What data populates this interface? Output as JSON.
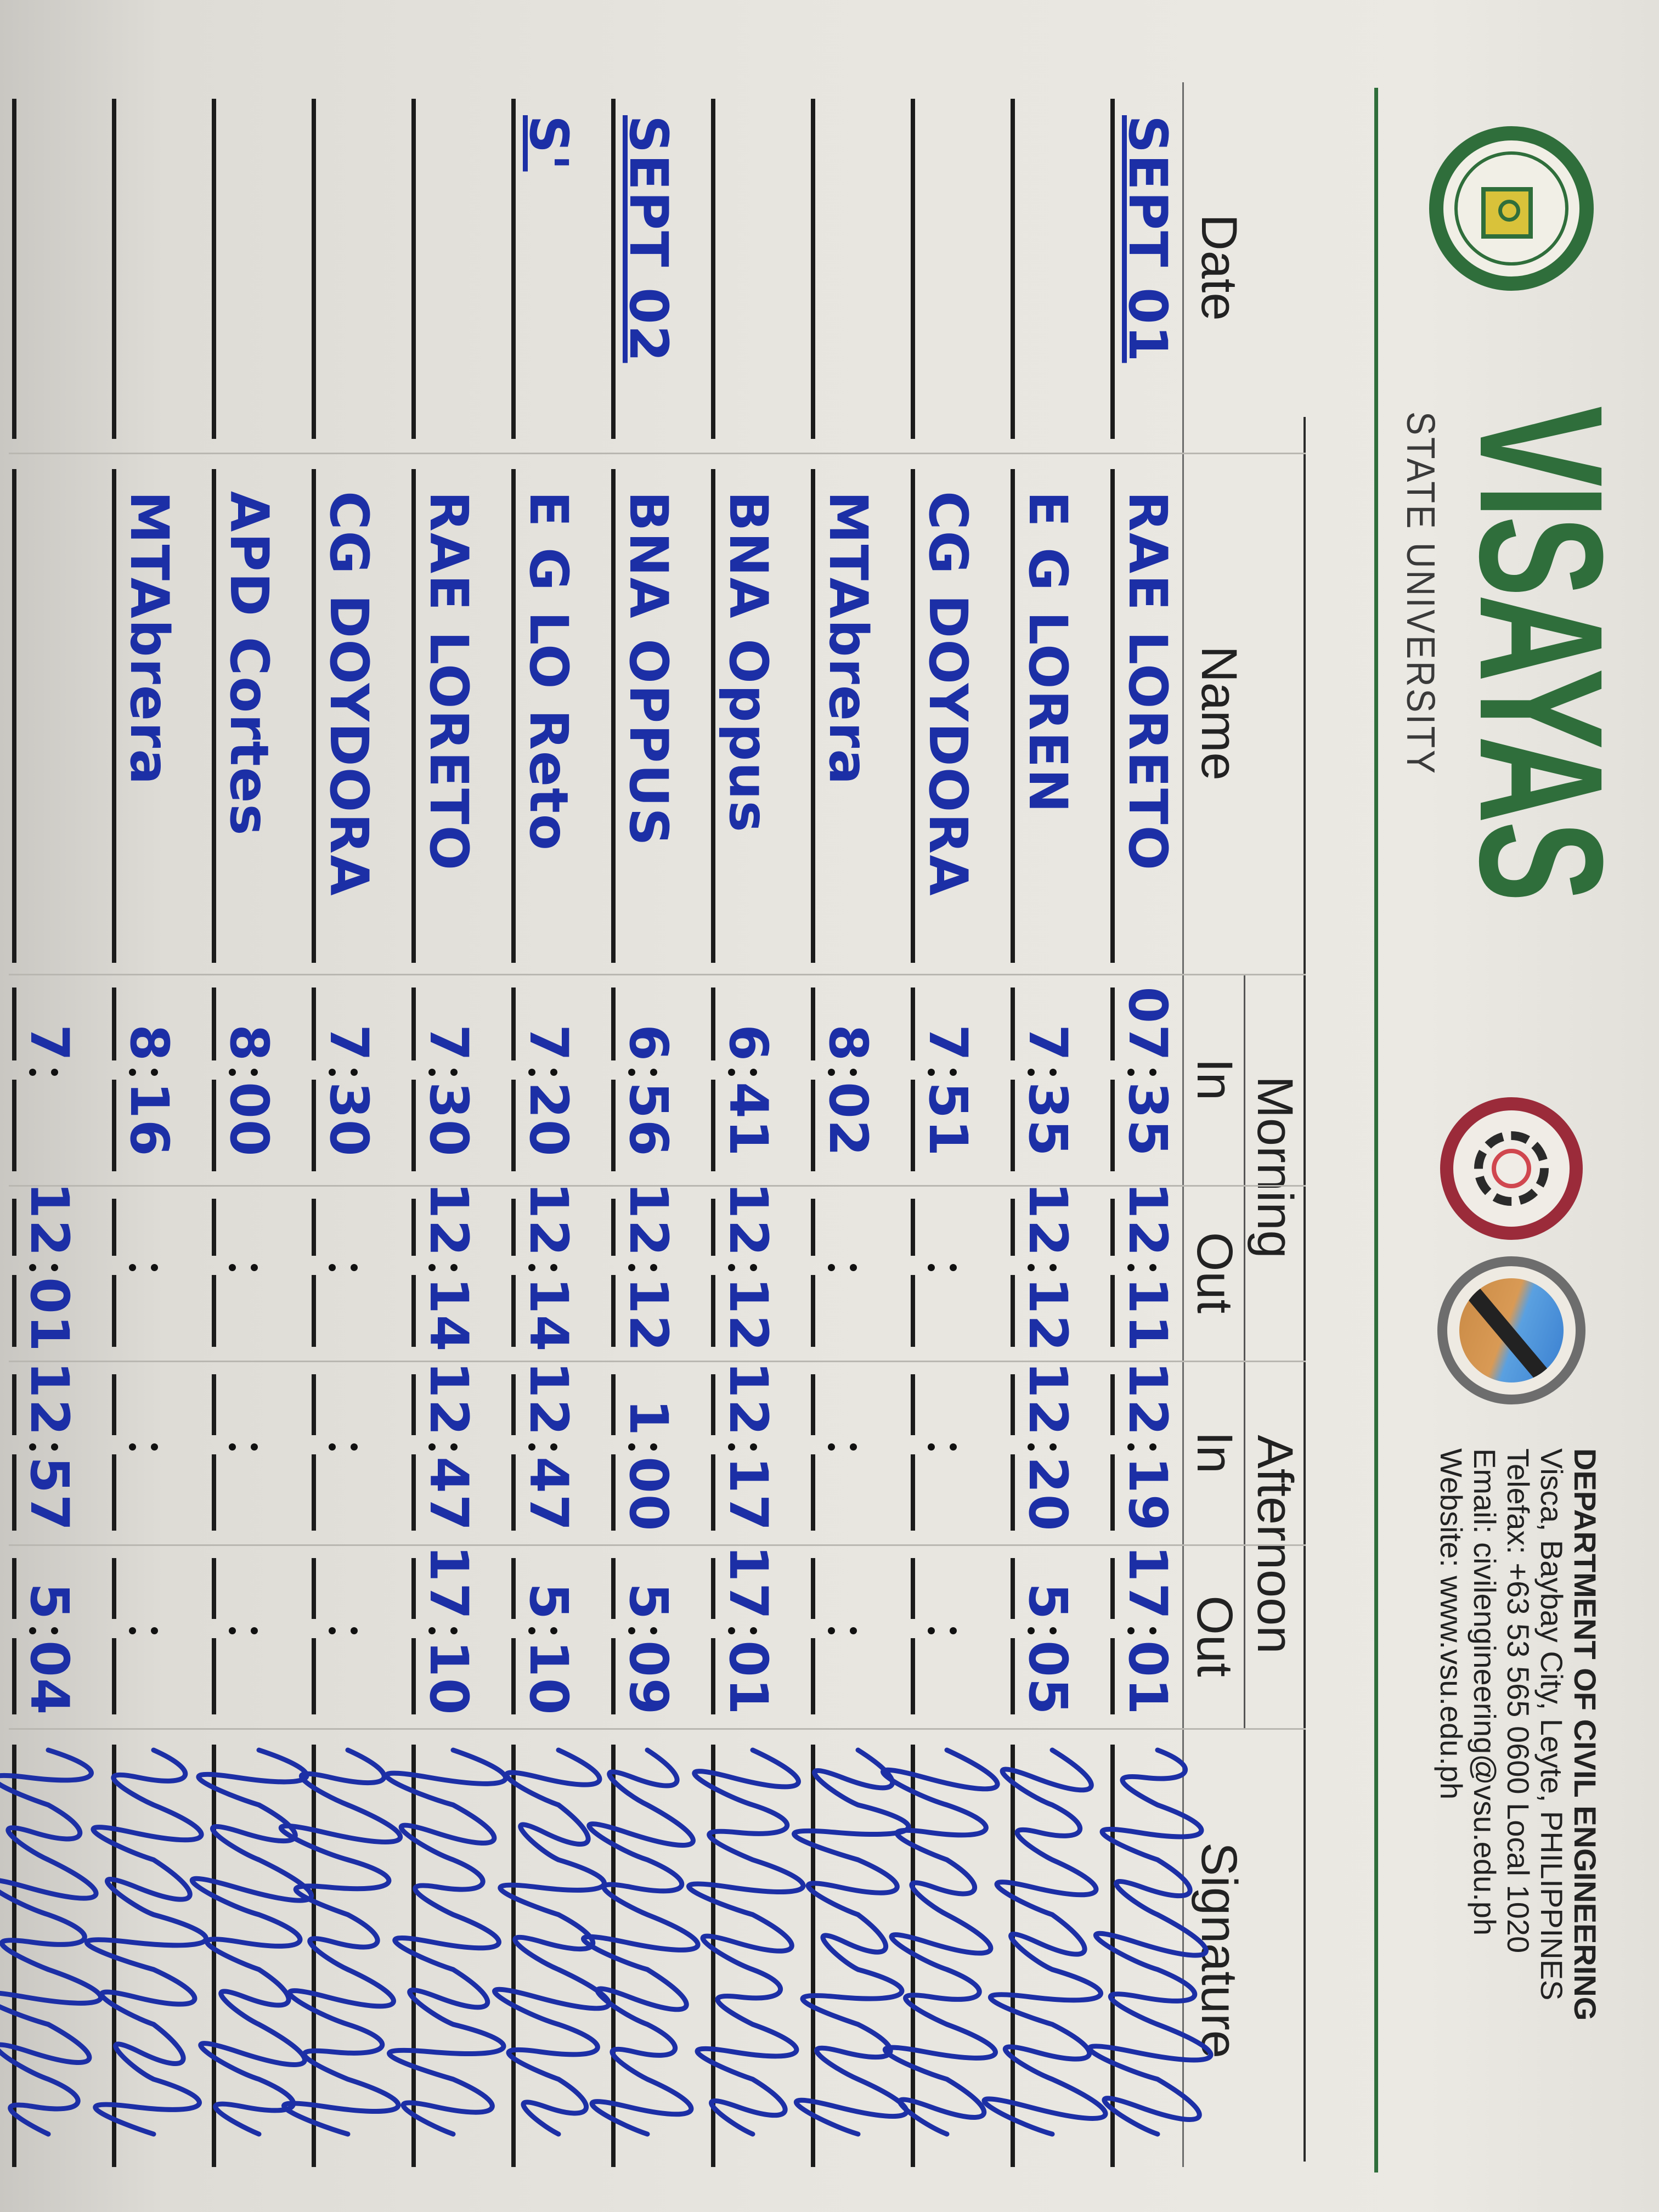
{
  "colors": {
    "ink": "#1c2fa6",
    "brand_green": "#2f6e3b",
    "coe_maroon": "#9b2b3a",
    "ce_blue": "#2a5db0"
  },
  "header": {
    "university_name": "VISAYAS",
    "university_sub": "STATE UNIVERSITY",
    "logo_text": "VISAYAS STATE UNIVERSITY",
    "department": "DEPARTMENT OF CIVIL ENGINEERING",
    "address": "Visca, Baybay City, Leyte, PHILIPPINES",
    "telefax": "Telefax: +63 53 565 0600 Local 1020",
    "email": "Email: civilengineering@vsu.edu.ph",
    "website": "Website: www.vsu.edu.ph"
  },
  "columns": {
    "date": "Date",
    "name": "Name",
    "morning": "Morning",
    "afternoon": "Afternoon",
    "in": "In",
    "out": "Out",
    "signature": "Signature"
  },
  "rows": [
    {
      "date": "SEPT 01",
      "name": "RAE LORETO",
      "am_in": [
        "07",
        "35"
      ],
      "am_out": [
        "12",
        "11"
      ],
      "pm_in": [
        "12",
        "19"
      ],
      "pm_out": [
        "17",
        "01"
      ]
    },
    {
      "date": "",
      "name": "E G LOREN",
      "am_in": [
        "7",
        "35"
      ],
      "am_out": [
        "12",
        "12"
      ],
      "pm_in": [
        "12",
        "20"
      ],
      "pm_out": [
        "5",
        "05"
      ]
    },
    {
      "date": "",
      "name": "CG DOYDORA",
      "am_in": [
        "7",
        "51"
      ],
      "am_out": [
        "",
        ""
      ],
      "pm_in": [
        "",
        ""
      ],
      "pm_out": [
        "",
        ""
      ]
    },
    {
      "date": "",
      "name": "MTAbrera",
      "am_in": [
        "8",
        "02"
      ],
      "am_out": [
        "",
        ""
      ],
      "pm_in": [
        "",
        ""
      ],
      "pm_out": [
        "",
        ""
      ]
    },
    {
      "date": "",
      "name": "BNA Oppus",
      "am_in": [
        "6",
        "41"
      ],
      "am_out": [
        "12",
        "12"
      ],
      "pm_in": [
        "12",
        "17"
      ],
      "pm_out": [
        "17",
        "01"
      ]
    },
    {
      "date": "SEPT 02",
      "name": "BNA OPPUS",
      "am_in": [
        "6",
        "56"
      ],
      "am_out": [
        "12",
        "12"
      ],
      "pm_in": [
        "1",
        "00"
      ],
      "pm_out": [
        "5",
        "09"
      ]
    },
    {
      "date": "S'",
      "name": "E G LO Reto",
      "am_in": [
        "7",
        "20"
      ],
      "am_out": [
        "12",
        "14"
      ],
      "pm_in": [
        "12",
        "47"
      ],
      "pm_out": [
        "5",
        "10"
      ]
    },
    {
      "date": "",
      "name": "RAE LORETO",
      "am_in": [
        "7",
        "30"
      ],
      "am_out": [
        "12",
        "14"
      ],
      "pm_in": [
        "12",
        "47"
      ],
      "pm_out": [
        "17",
        "10"
      ]
    },
    {
      "date": "",
      "name": "CG DOYDORA",
      "am_in": [
        "7",
        "30"
      ],
      "am_out": [
        "",
        ""
      ],
      "pm_in": [
        "",
        ""
      ],
      "pm_out": [
        "",
        ""
      ]
    },
    {
      "date": "",
      "name": "APD Cortes",
      "am_in": [
        "8",
        "00"
      ],
      "am_out": [
        "",
        ""
      ],
      "pm_in": [
        "",
        ""
      ],
      "pm_out": [
        "",
        ""
      ]
    },
    {
      "date": "",
      "name": "MTAbrera",
      "am_in": [
        "8",
        "16"
      ],
      "am_out": [
        "",
        ""
      ],
      "pm_in": [
        "",
        ""
      ],
      "pm_out": [
        "",
        ""
      ]
    },
    {
      "date": "",
      "name": "",
      "am_in": [
        "7",
        ""
      ],
      "am_out": [
        "12",
        "01"
      ],
      "pm_in": [
        "12",
        "57"
      ],
      "pm_out": [
        "5",
        "04"
      ]
    }
  ]
}
